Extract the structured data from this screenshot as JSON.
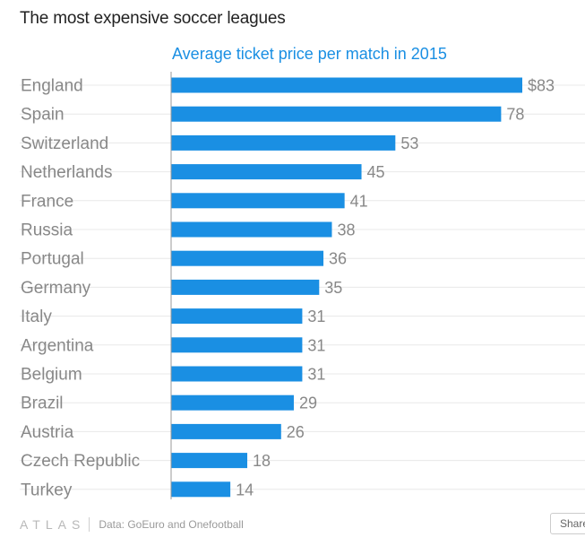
{
  "title": "The most expensive soccer leagues",
  "footer": {
    "logo": "ATLAS",
    "source": "Data: GoEuro and Onefootball",
    "share_label": "Share"
  },
  "colors": {
    "bar": "#1a8fe3",
    "label": "#888888",
    "value": "#888888",
    "grid": "#e8e8e8",
    "axis": "#999999"
  },
  "chart_data": {
    "type": "bar",
    "orientation": "horizontal",
    "title": "Average ticket price per match in 2015",
    "categories": [
      "England",
      "Spain",
      "Switzerland",
      "Netherlands",
      "France",
      "Russia",
      "Portugal",
      "Germany",
      "Italy",
      "Argentina",
      "Belgium",
      "Brazil",
      "Austria",
      "Czech Republic",
      "Turkey"
    ],
    "values": [
      83,
      78,
      53,
      45,
      41,
      38,
      36,
      35,
      31,
      31,
      31,
      29,
      26,
      18,
      14
    ],
    "value_labels": [
      "$83",
      "78",
      "53",
      "45",
      "41",
      "38",
      "36",
      "35",
      "31",
      "31",
      "31",
      "29",
      "26",
      "18",
      "14"
    ],
    "xlim": [
      0,
      83
    ],
    "grid": true
  }
}
